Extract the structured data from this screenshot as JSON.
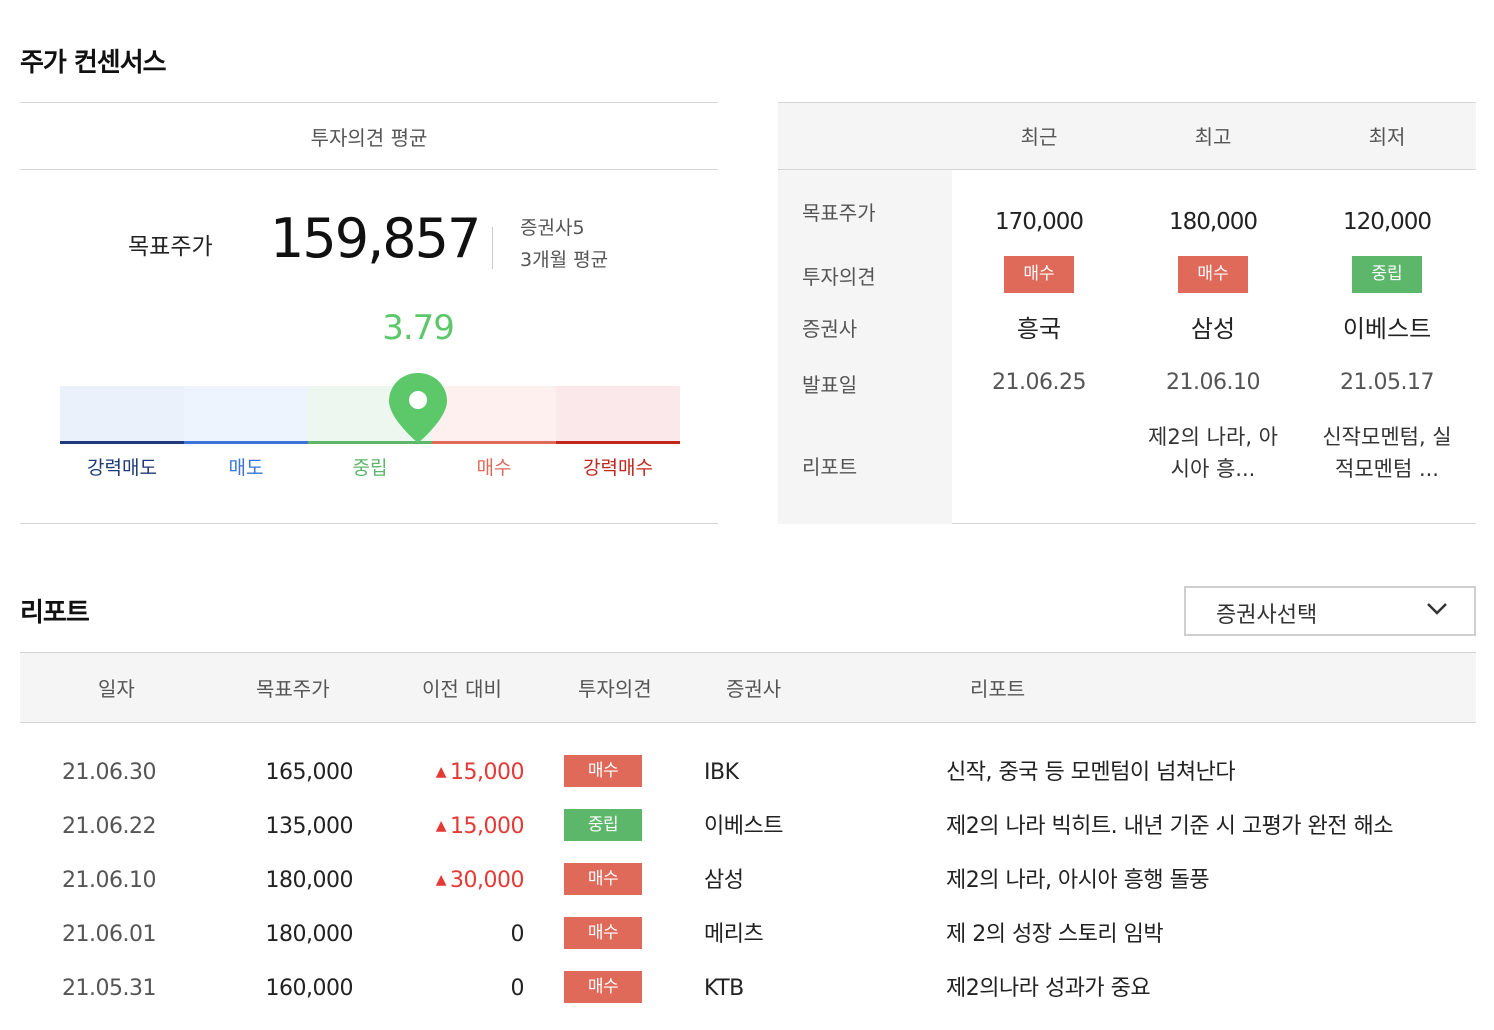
{
  "consensus": {
    "title": "주가 컨센서스",
    "avg_header": "투자의견 평균",
    "target_label": "목표주가",
    "target_value": "159,857",
    "brokers_count": "증권사5",
    "period": "3개월 평균",
    "score": "3.79",
    "score_fraction": 0.5775,
    "gauge": [
      {
        "label": "강력매도",
        "color": "#1f3a7a",
        "bg": "#eaf1fa"
      },
      {
        "label": "매도",
        "color": "#3b74d6",
        "bg": "#eef4fd"
      },
      {
        "label": "중립",
        "color": "#5cb76b",
        "bg": "#eef7ef"
      },
      {
        "label": "매수",
        "color": "#e06a5a",
        "bg": "#fdf0ee"
      },
      {
        "label": "강력매수",
        "color": "#c0271d",
        "bg": "#fbe8ea"
      }
    ],
    "marker_color": "#5cc86a"
  },
  "summary": {
    "columns": [
      "최근",
      "최고",
      "최저"
    ],
    "row_labels": {
      "target": "목표주가",
      "opinion": "투자의견",
      "broker": "증권사",
      "date": "발표일",
      "report": "리포트"
    },
    "entries": [
      {
        "target": "170,000",
        "opinion": "매수",
        "opinion_type": "buy",
        "broker": "흥국",
        "date": "21.06.25",
        "report": ""
      },
      {
        "target": "180,000",
        "opinion": "매수",
        "opinion_type": "buy",
        "broker": "삼성",
        "date": "21.06.10",
        "report_line1": "제2의 나라, 아",
        "report_line2": "시아 흥..."
      },
      {
        "target": "120,000",
        "opinion": "중립",
        "opinion_type": "neutral",
        "broker": "이베스트",
        "date": "21.05.17",
        "report_line1": "신작모멘텀, 실",
        "report_line2": "적모멘텀 ..."
      }
    ]
  },
  "reports": {
    "title": "리포트",
    "select_label": "증권사선택",
    "headers": [
      "일자",
      "목표주가",
      "이전 대비",
      "투자의견",
      "증권사",
      "리포트"
    ],
    "rows": [
      {
        "date": "21.06.30",
        "target": "165,000",
        "diff": "15,000",
        "diff_up": true,
        "opinion": "매수",
        "opinion_type": "buy",
        "broker": "IBK",
        "report": "신작, 중국 등 모멘텀이 넘쳐난다"
      },
      {
        "date": "21.06.22",
        "target": "135,000",
        "diff": "15,000",
        "diff_up": true,
        "opinion": "중립",
        "opinion_type": "neutral",
        "broker": "이베스트",
        "report": "제2의 나라 빅히트. 내년 기준 시 고평가 완전 해소"
      },
      {
        "date": "21.06.10",
        "target": "180,000",
        "diff": "30,000",
        "diff_up": true,
        "opinion": "매수",
        "opinion_type": "buy",
        "broker": "삼성",
        "report": "제2의 나라, 아시아 흥행 돌풍"
      },
      {
        "date": "21.06.01",
        "target": "180,000",
        "diff": "0",
        "diff_up": false,
        "opinion": "매수",
        "opinion_type": "buy",
        "broker": "메리츠",
        "report": "제 2의 성장 스토리 임박"
      },
      {
        "date": "21.05.31",
        "target": "160,000",
        "diff": "0",
        "diff_up": false,
        "opinion": "매수",
        "opinion_type": "buy",
        "broker": "KTB",
        "report": "제2의나라 성과가 중요"
      }
    ]
  }
}
